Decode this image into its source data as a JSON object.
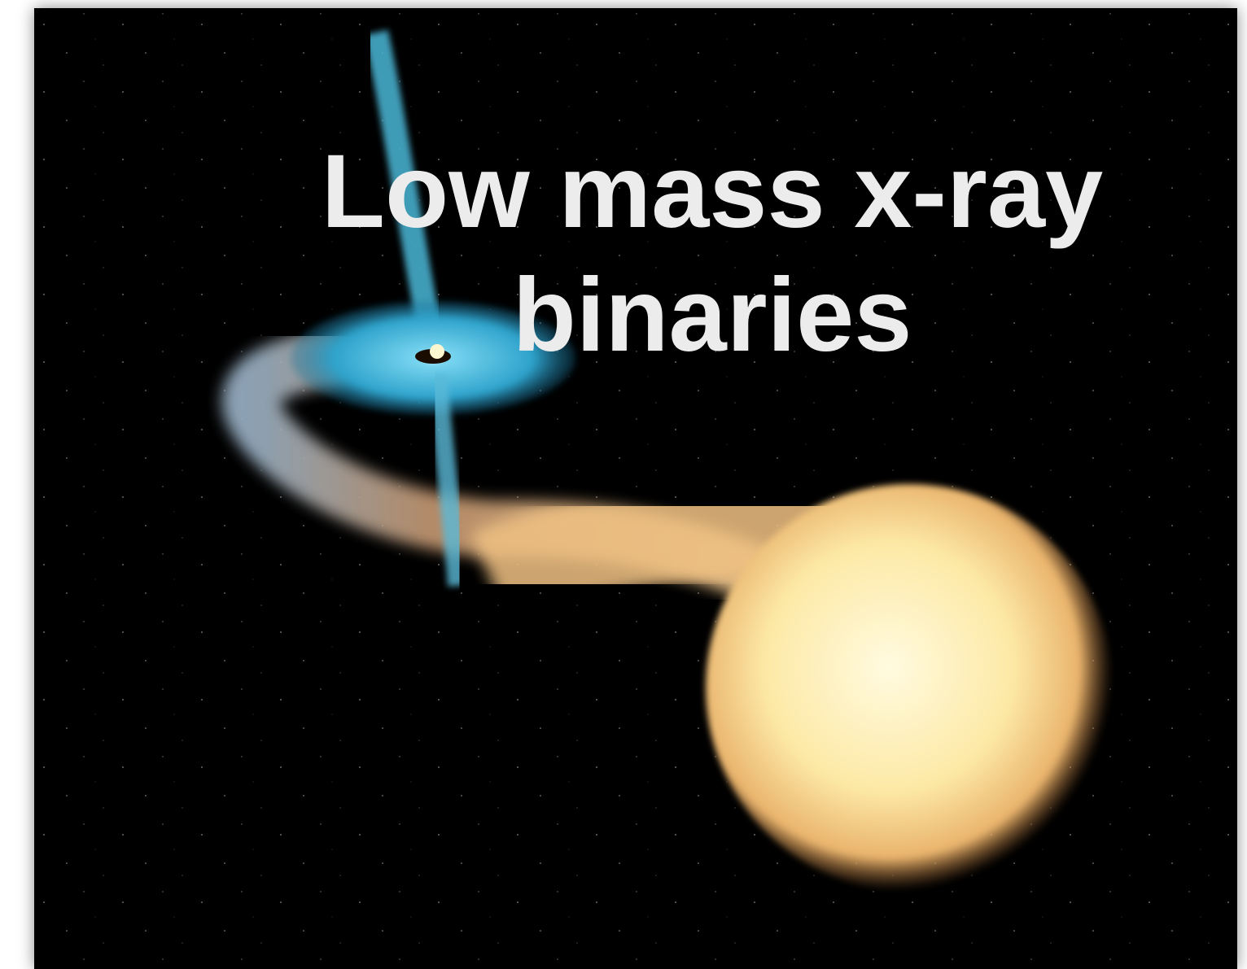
{
  "slide": {
    "title": "Low mass x-ray binaries"
  }
}
